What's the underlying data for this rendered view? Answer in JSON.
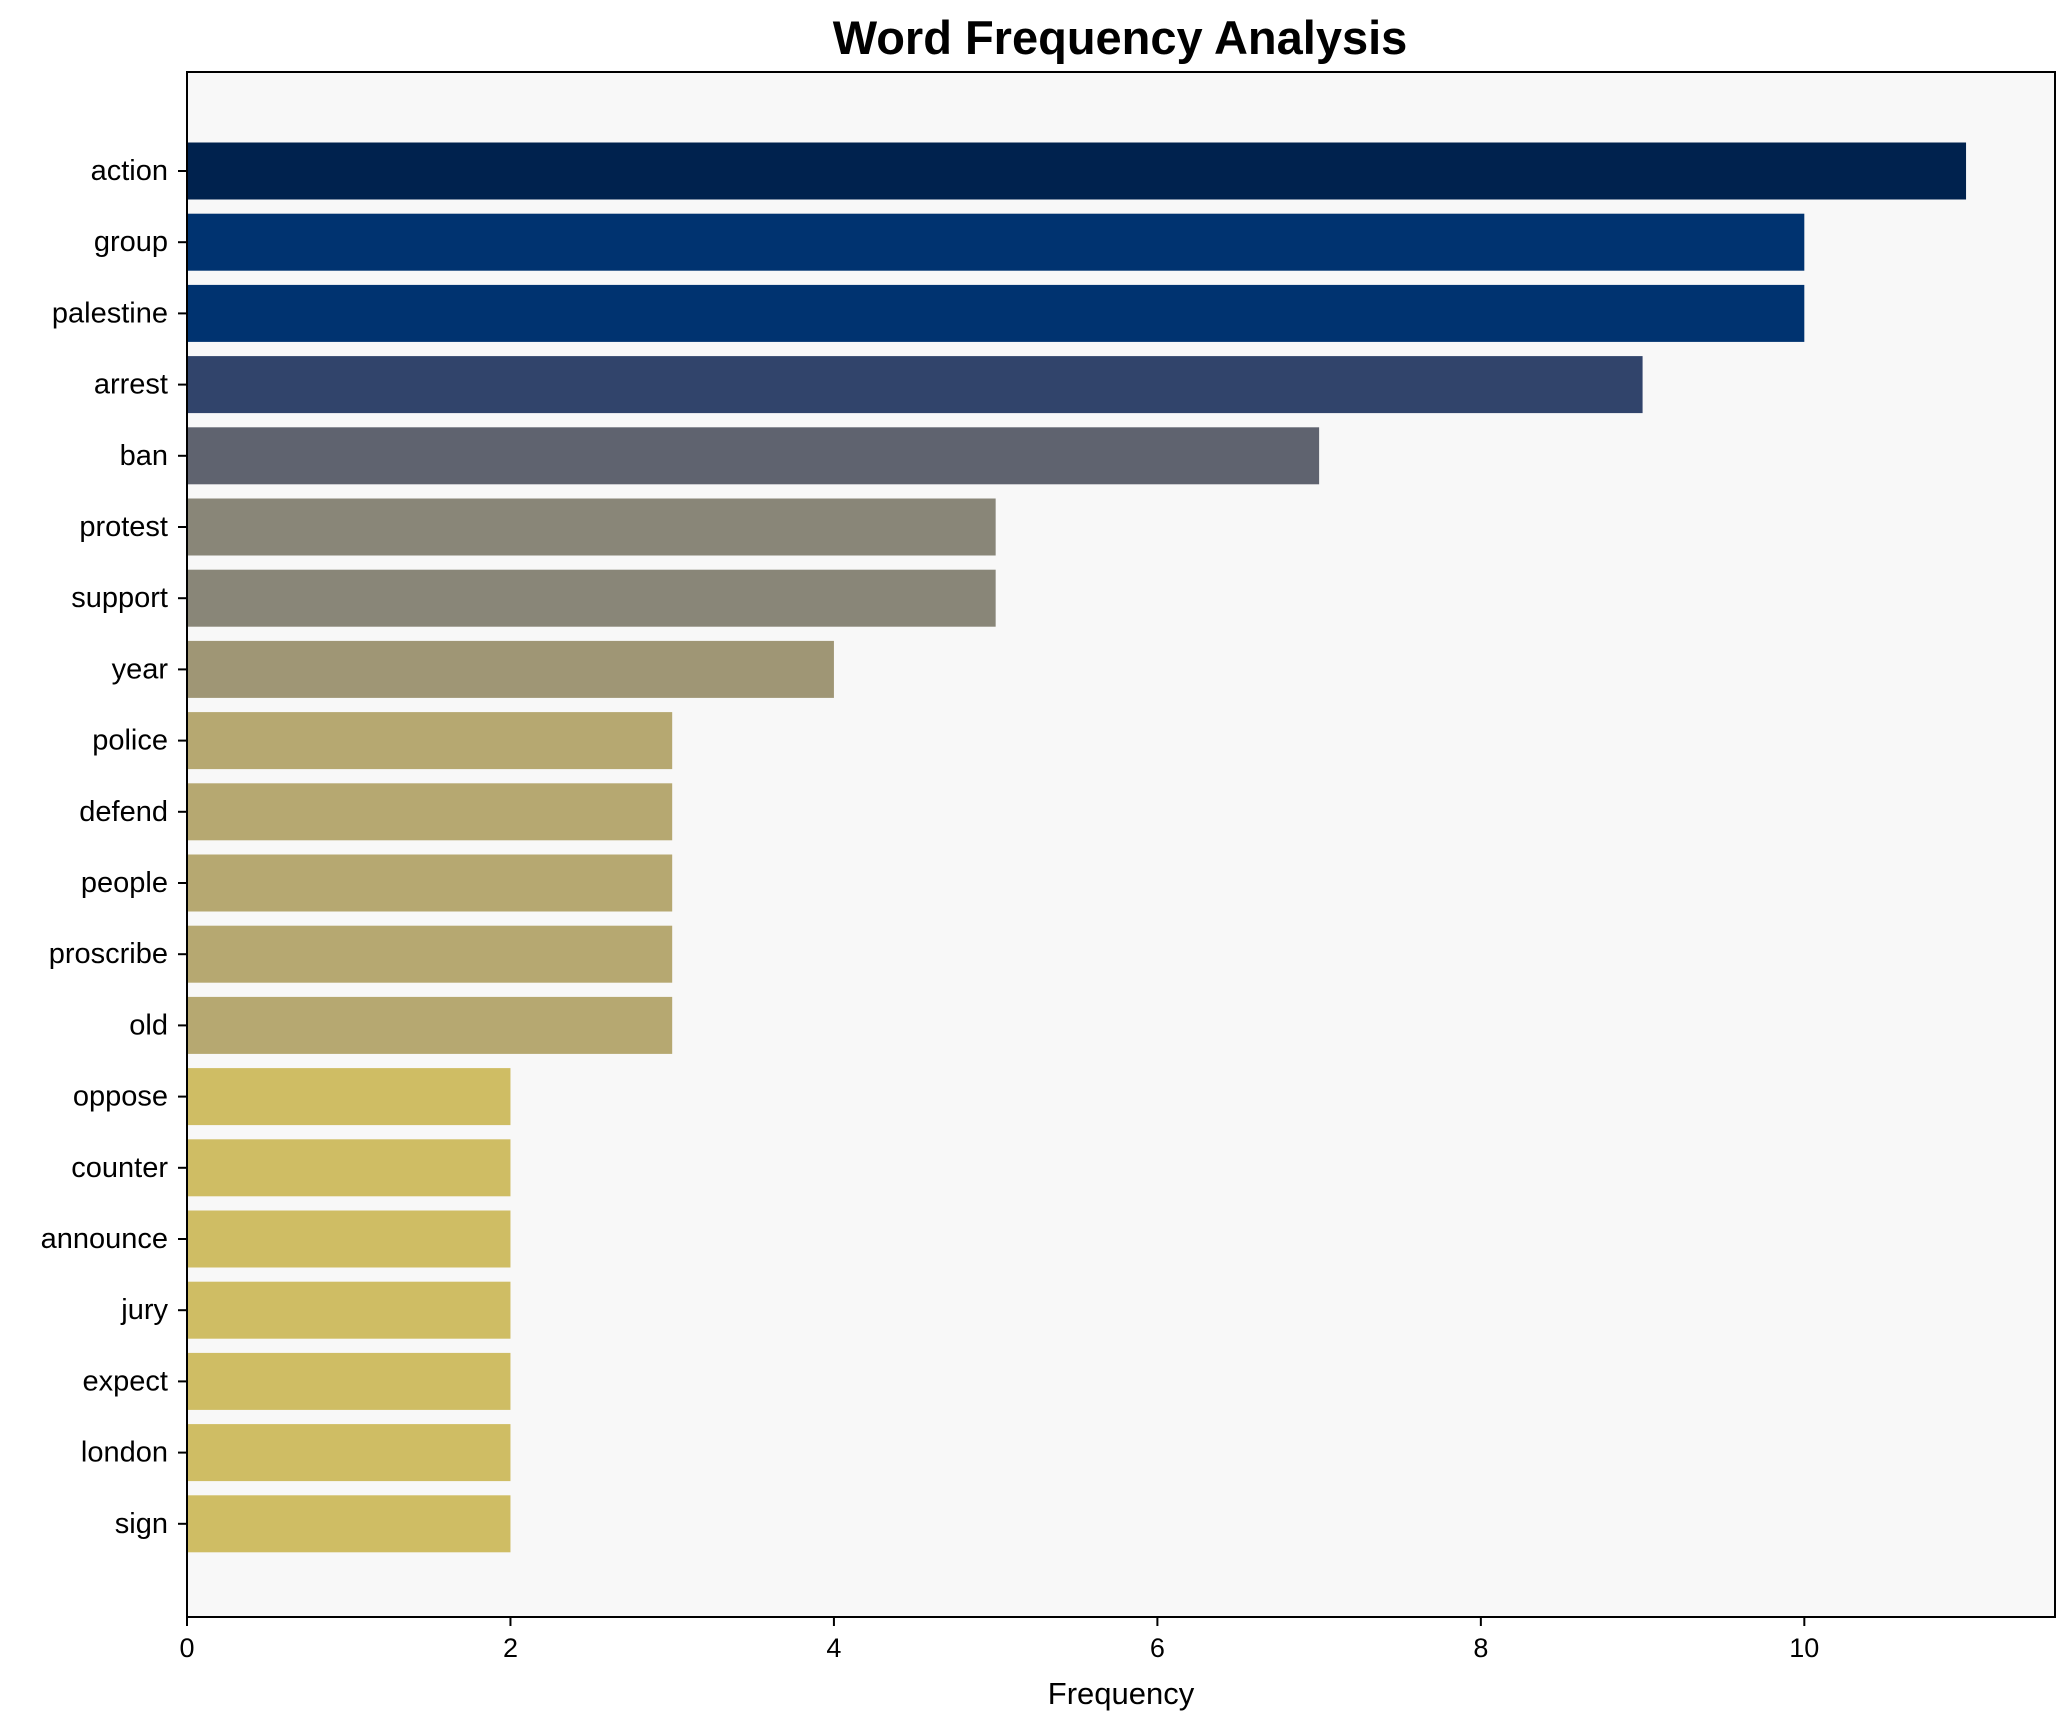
{
  "chart_data": {
    "type": "bar",
    "orientation": "horizontal",
    "title": "Word Frequency Analysis",
    "xlabel": "Frequency",
    "ylabel": "",
    "xlim": [
      0,
      11.55
    ],
    "xticks": [
      0,
      2,
      4,
      6,
      8,
      10
    ],
    "grid": false,
    "plot_background": "#f8f8f8",
    "categories": [
      "action",
      "group",
      "palestine",
      "arrest",
      "ban",
      "protest",
      "support",
      "year",
      "police",
      "defend",
      "people",
      "proscribe",
      "old",
      "oppose",
      "counter",
      "announce",
      "jury",
      "expect",
      "london",
      "sign"
    ],
    "values": [
      11,
      10,
      10,
      9,
      7,
      5,
      5,
      4,
      3,
      3,
      3,
      3,
      3,
      2,
      2,
      2,
      2,
      2,
      2,
      2
    ],
    "colors": [
      "#00224e",
      "#003370",
      "#003370",
      "#31446b",
      "#5f636f",
      "#898678",
      "#898678",
      "#9f9675",
      "#b6a871",
      "#b6a871",
      "#b6a871",
      "#b6a871",
      "#b6a871",
      "#cfbd64",
      "#cfbd64",
      "#cfbd64",
      "#cfbd64",
      "#cfbd64",
      "#cfbd64",
      "#cfbd64"
    ]
  }
}
